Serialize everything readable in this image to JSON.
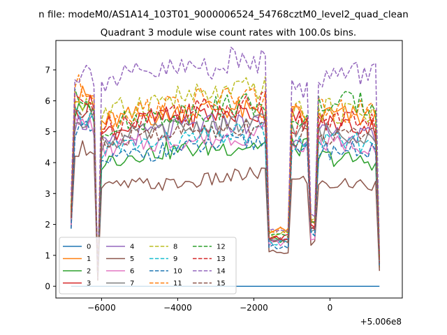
{
  "figure": {
    "suptitle": "n file: modeM0/AS1A14_103T01_9000006524_54768cztM0_level2_quad_clean",
    "offset_text": "+5.006e8"
  },
  "chart_data": {
    "type": "line",
    "title": "Quadrant 3 module wise count rates with 100.0s bins.",
    "xlabel": "",
    "ylabel": "",
    "x_offset": 500600000,
    "xlim": [
      -7200,
      1900
    ],
    "ylim": [
      -0.38,
      7.95
    ],
    "x_ticks": [
      -6000,
      -4000,
      -2000,
      0
    ],
    "x_tick_labels": [
      "−6000",
      "−4000",
      "−2000",
      "0"
    ],
    "y_ticks": [
      0,
      1,
      2,
      3,
      4,
      5,
      6,
      7
    ],
    "y_tick_labels": [
      "0",
      "1",
      "2",
      "3",
      "4",
      "5",
      "6",
      "7"
    ],
    "grid": false,
    "legend": {
      "placement": "lower-left",
      "columns": 4
    },
    "x_range": [
      -6800,
      1300
    ],
    "series": [
      {
        "name": "0",
        "color": "#1f77b4",
        "dash": "solid",
        "values": [
          0,
          0,
          0,
          0
        ]
      },
      {
        "name": "1",
        "color": "#ff7f0e",
        "dash": "solid",
        "values": [
          2.2,
          6.1,
          5.3,
          5.5,
          5.6,
          5.8,
          5.5,
          1.8,
          5.5,
          2.0,
          5.6,
          5.4
        ]
      },
      {
        "name": "2",
        "color": "#2ca02c",
        "dash": "solid",
        "values": [
          2.5,
          5.6,
          4.0,
          4.3,
          4.4,
          4.5,
          4.6,
          1.5,
          4.5,
          1.8,
          4.2,
          4.0
        ]
      },
      {
        "name": "3",
        "color": "#d62728",
        "dash": "solid",
        "values": [
          2.0,
          5.8,
          4.9,
          5.3,
          5.5,
          5.6,
          5.6,
          1.6,
          5.4,
          1.9,
          5.3,
          5.1
        ]
      },
      {
        "name": "4",
        "color": "#9467bd",
        "dash": "solid",
        "values": [
          2.1,
          5.3,
          4.5,
          4.9,
          5.1,
          5.3,
          5.2,
          1.5,
          4.9,
          1.8,
          4.9,
          4.8
        ]
      },
      {
        "name": "5",
        "color": "#8c564b",
        "dash": "solid",
        "values": [
          1.8,
          4.5,
          3.2,
          3.3,
          3.3,
          3.5,
          3.7,
          1.1,
          3.4,
          1.4,
          3.3,
          3.3
        ]
      },
      {
        "name": "6",
        "color": "#e377c2",
        "dash": "solid",
        "values": [
          2.0,
          5.2,
          4.4,
          4.6,
          4.7,
          4.8,
          5.0,
          1.4,
          4.5,
          1.6,
          4.6,
          4.6
        ]
      },
      {
        "name": "7",
        "color": "#7f7f7f",
        "dash": "solid",
        "values": [
          2.2,
          5.5,
          4.6,
          4.9,
          5.1,
          5.2,
          5.3,
          1.5,
          5.0,
          1.8,
          5.0,
          4.9
        ]
      },
      {
        "name": "8",
        "color": "#bcbd22",
        "dash": "dashed",
        "values": [
          2.4,
          6.0,
          5.5,
          5.9,
          6.1,
          6.2,
          6.5,
          1.7,
          5.7,
          2.1,
          5.7,
          5.6
        ]
      },
      {
        "name": "9",
        "color": "#17becf",
        "dash": "dashed",
        "values": [
          2.1,
          5.4,
          4.4,
          4.6,
          4.7,
          4.9,
          5.0,
          1.4,
          4.6,
          1.7,
          4.7,
          4.6
        ]
      },
      {
        "name": "10",
        "color": "#1f77b4",
        "dash": "dashed",
        "values": [
          2.0,
          5.0,
          4.0,
          4.3,
          4.4,
          4.6,
          4.7,
          1.3,
          4.3,
          1.7,
          4.4,
          4.4
        ]
      },
      {
        "name": "11",
        "color": "#ff7f0e",
        "dash": "dashed",
        "values": [
          2.6,
          6.4,
          5.3,
          5.7,
          5.9,
          6.1,
          6.1,
          1.8,
          5.6,
          2.0,
          5.7,
          5.6
        ]
      },
      {
        "name": "12",
        "color": "#2ca02c",
        "dash": "dashed",
        "values": [
          2.5,
          6.0,
          5.1,
          5.4,
          5.6,
          5.8,
          6.0,
          1.6,
          5.4,
          2.0,
          5.9,
          5.9
        ]
      },
      {
        "name": "13",
        "color": "#d62728",
        "dash": "dashed",
        "values": [
          2.2,
          5.9,
          5.1,
          5.5,
          5.7,
          5.8,
          6.0,
          1.6,
          5.2,
          1.9,
          5.5,
          5.3
        ]
      },
      {
        "name": "14",
        "color": "#9467bd",
        "dash": "dashed",
        "values": [
          3.1,
          6.9,
          6.6,
          6.8,
          7.0,
          7.2,
          7.4,
          1.9,
          6.3,
          2.4,
          6.8,
          6.9
        ]
      },
      {
        "name": "15",
        "color": "#8c564b",
        "dash": "dashed",
        "values": [
          2.3,
          5.6,
          4.6,
          4.9,
          5.0,
          5.1,
          5.3,
          1.5,
          4.8,
          1.8,
          4.9,
          4.9
        ]
      }
    ]
  }
}
